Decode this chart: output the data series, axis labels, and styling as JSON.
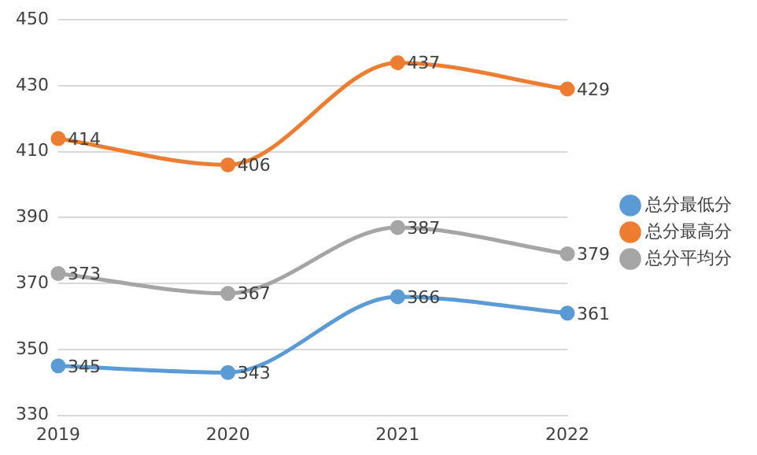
{
  "chart_data": {
    "type": "line",
    "categories": [
      "2019",
      "2020",
      "2021",
      "2022"
    ],
    "series": [
      {
        "name": "总分最低分",
        "color": "#5b9bd5",
        "values": [
          345,
          343,
          366,
          361
        ]
      },
      {
        "name": "总分最高分",
        "color": "#ed7d31",
        "values": [
          414,
          406,
          437,
          429
        ]
      },
      {
        "name": "总分平均分",
        "color": "#a5a5a5",
        "values": [
          373,
          367,
          387,
          379
        ]
      }
    ],
    "ylim": [
      330,
      450
    ],
    "yticks": [
      330,
      350,
      370,
      390,
      410,
      430,
      450
    ],
    "grid": "y",
    "legend": "right",
    "marker": "circle",
    "line_style": "solid",
    "data_labels": true
  }
}
